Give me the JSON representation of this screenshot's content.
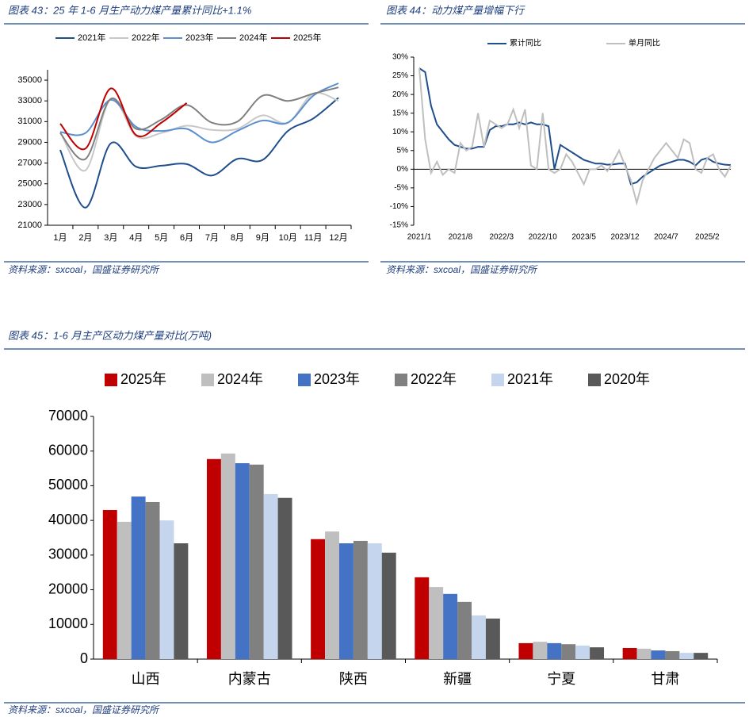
{
  "chart_data": [
    {
      "type": "line",
      "title": "图表 43：25 年 1-6 月生产动力煤产量累计同比+1.1%",
      "source": "资料来源：sxcoal，国盛证券研究所",
      "categories": [
        "1月",
        "2月",
        "3月",
        "4月",
        "5月",
        "6月",
        "7月",
        "8月",
        "9月",
        "10月",
        "11月",
        "12月"
      ],
      "series": [
        {
          "name": "2021年",
          "color": "#1f4e8c",
          "values": [
            28270,
            22700,
            28900,
            26650,
            26750,
            26900,
            25800,
            27400,
            27300,
            30100,
            31300,
            33300
          ]
        },
        {
          "name": "2022年",
          "color": "#c8c8c8",
          "values": [
            30000,
            26300,
            33200,
            29600,
            29900,
            30600,
            30200,
            30300,
            31600,
            30900,
            33700,
            33000
          ]
        },
        {
          "name": "2023年",
          "color": "#5b8fd0",
          "values": [
            30000,
            29900,
            33100,
            30500,
            30100,
            30300,
            29000,
            30100,
            31100,
            30900,
            33500,
            34700
          ]
        },
        {
          "name": "2024年",
          "color": "#808080",
          "values": [
            29900,
            27400,
            33200,
            30300,
            31200,
            32600,
            30900,
            31000,
            33500,
            33000,
            33700,
            34300
          ]
        },
        {
          "name": "2025年",
          "color": "#c00000",
          "values": [
            30800,
            28400,
            34200,
            29700,
            30900,
            32800,
            null,
            null,
            null,
            null,
            null,
            null
          ]
        }
      ],
      "ylim": [
        21000,
        36000
      ],
      "yticks": [
        21000,
        23000,
        25000,
        27000,
        29000,
        31000,
        33000,
        35000
      ]
    },
    {
      "type": "line",
      "title": "图表 44：动力煤产量增幅下行",
      "source": "资料来源：sxcoal，国盛证券研究所",
      "categories": [
        "2021/1",
        null,
        null,
        null,
        null,
        null,
        null,
        "2021/8",
        null,
        null,
        null,
        null,
        null,
        null,
        "2022/3",
        null,
        null,
        null,
        null,
        null,
        null,
        "2022/10",
        null,
        null,
        null,
        null,
        null,
        null,
        "2023/5",
        null,
        null,
        null,
        null,
        null,
        null,
        "2023/12",
        null,
        null,
        null,
        null,
        null,
        null,
        "2024/7",
        null,
        null,
        null,
        null,
        null,
        null,
        "2025/2",
        null,
        null,
        null,
        null
      ],
      "series": [
        {
          "name": "累计同比",
          "color": "#1f4e8c",
          "values": [
            27,
            26,
            17,
            12,
            10,
            8,
            6.5,
            6,
            5.5,
            5.5,
            6,
            6,
            10.5,
            11.5,
            11.5,
            12,
            12,
            12.5,
            12,
            12.5,
            12,
            12,
            11.5,
            0,
            6.5,
            5.5,
            4.5,
            3.5,
            2.5,
            2,
            1.5,
            1.5,
            1.2,
            1.3,
            1.5,
            1.5,
            -4,
            -3.5,
            -2,
            -1,
            0,
            1,
            1.5,
            2,
            2.5,
            2.5,
            2,
            1,
            2.5,
            3,
            2,
            1.5,
            1.2,
            1.1
          ]
        },
        {
          "name": "单月同比",
          "color": "#bfbfbf",
          "values": [
            27,
            8,
            -1,
            2,
            -1.5,
            0,
            -1,
            7,
            5,
            6,
            15,
            6,
            13,
            12,
            11,
            12,
            16,
            11,
            16,
            1,
            0,
            15,
            0,
            -1,
            0,
            4,
            2,
            -1,
            -4,
            0,
            0,
            1,
            -0.5,
            2,
            5,
            1,
            -3,
            -9,
            -3,
            0,
            3,
            5,
            7,
            5,
            3,
            8,
            7,
            0,
            -1,
            3,
            4,
            0,
            -2,
            1
          ]
        }
      ],
      "ylim": [
        -15,
        30
      ],
      "yticks": [
        {
          "value": -15,
          "label": "-15%"
        },
        {
          "value": -10,
          "label": "-10%"
        },
        {
          "value": -5,
          "label": "-5%"
        },
        {
          "value": 0,
          "label": "0%"
        },
        {
          "value": 5,
          "label": "5%"
        },
        {
          "value": 10,
          "label": "10%"
        },
        {
          "value": 15,
          "label": "15%"
        },
        {
          "value": 20,
          "label": "20%"
        },
        {
          "value": 25,
          "label": "25%"
        },
        {
          "value": 30,
          "label": "30%"
        }
      ]
    },
    {
      "type": "bar",
      "title": "图表 45：1-6 月主产区动力煤产量对比(万吨)",
      "source": "资料来源：sxcoal，国盛证券研究所",
      "categories": [
        "山西",
        "内蒙古",
        "陕西",
        "新疆",
        "宁夏",
        "甘肃"
      ],
      "series": [
        {
          "name": "2025年",
          "color": "#c00000",
          "values": [
            43000,
            57700,
            34600,
            23600,
            4600,
            3200
          ]
        },
        {
          "name": "2024年",
          "color": "#bfbfbf",
          "values": [
            39600,
            59300,
            36800,
            20800,
            5000,
            3000
          ]
        },
        {
          "name": "2023年",
          "color": "#4472c4",
          "values": [
            46900,
            56500,
            33400,
            18800,
            4600,
            2500
          ]
        },
        {
          "name": "2022年",
          "color": "#808080",
          "values": [
            45300,
            56100,
            34100,
            16500,
            4300,
            2300
          ]
        },
        {
          "name": "2021年",
          "color": "#c5d5ee",
          "values": [
            40000,
            47600,
            33400,
            12600,
            3900,
            1800
          ]
        },
        {
          "name": "2020年",
          "color": "#595959",
          "values": [
            33400,
            46500,
            30700,
            11700,
            3400,
            1800
          ]
        }
      ],
      "ylim": [
        0,
        70000
      ],
      "yticks": [
        0,
        10000,
        20000,
        30000,
        40000,
        50000,
        60000,
        70000
      ]
    }
  ]
}
